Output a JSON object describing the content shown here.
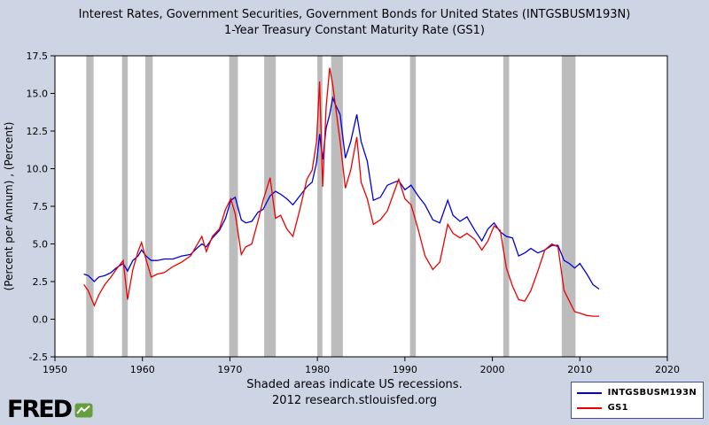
{
  "title": {
    "line1": "Interest Rates, Government Securities, Government Bonds for United States (INTGSBUSM193N)",
    "line2": "1-Year Treasury Constant Maturity Rate (GS1)"
  },
  "footer": {
    "note": "Shaded areas indicate US recessions.",
    "credit": "2012 research.stlouisfed.org"
  },
  "logo": {
    "text": "FRED"
  },
  "legend": [
    {
      "label": "INTGSBUSM193N",
      "color": "#0000dd"
    },
    {
      "label": "GS1",
      "color": "#ee0000"
    }
  ],
  "colors": {
    "background": "#cdd5e4",
    "plot_bg": "#ffffff",
    "recession": "#bcbcbc",
    "frame": "#000000",
    "series1": "#0000dd",
    "series2": "#ee0000"
  },
  "chart_data": {
    "type": "line",
    "title": "Interest Rates, Government Securities, Government Bonds for United States (INTGSBUSM193N); 1-Year Treasury Constant Maturity Rate (GS1)",
    "xlabel": "",
    "ylabel": "(Percent per Annum) , (Percent)",
    "xlim": [
      1950,
      2020
    ],
    "ylim": [
      -2.5,
      17.5
    ],
    "grid": false,
    "legend_position": "bottom-right",
    "x_ticks": [
      "1950",
      "1960",
      "1970",
      "1980",
      "1990",
      "2000",
      "2010",
      "2020"
    ],
    "y_ticks": [
      "-2.5",
      "0.0",
      "2.5",
      "5.0",
      "7.5",
      "10.0",
      "12.5",
      "15.0",
      "17.5"
    ],
    "recessions": [
      [
        1953.58,
        1954.42
      ],
      [
        1957.67,
        1958.33
      ],
      [
        1960.33,
        1961.17
      ],
      [
        1969.92,
        1970.92
      ],
      [
        1973.92,
        1975.25
      ],
      [
        1980.0,
        1980.58
      ],
      [
        1981.58,
        1982.92
      ],
      [
        1990.58,
        1991.25
      ],
      [
        2001.25,
        2001.92
      ],
      [
        2007.92,
        2009.5
      ]
    ],
    "x": [
      1953.3,
      1953.8,
      1954.5,
      1955.0,
      1955.7,
      1956.4,
      1957.0,
      1957.8,
      1958.3,
      1958.9,
      1959.5,
      1959.9,
      1960.4,
      1961.0,
      1961.7,
      1962.5,
      1963.5,
      1964.5,
      1965.5,
      1966.2,
      1966.8,
      1967.3,
      1968.0,
      1968.8,
      1969.5,
      1970.1,
      1970.6,
      1971.3,
      1971.8,
      1972.5,
      1973.2,
      1973.8,
      1974.6,
      1975.2,
      1975.8,
      1976.5,
      1977.2,
      1978.0,
      1978.8,
      1979.4,
      1979.9,
      1980.25,
      1980.6,
      1981.0,
      1981.4,
      1981.75,
      1982.1,
      1982.6,
      1983.2,
      1983.8,
      1984.5,
      1985.0,
      1985.7,
      1986.4,
      1987.2,
      1988.0,
      1988.8,
      1989.3,
      1990.0,
      1990.7,
      1991.5,
      1992.3,
      1993.2,
      1994.0,
      1994.9,
      1995.5,
      1996.3,
      1997.1,
      1998.0,
      1998.8,
      1999.5,
      2000.2,
      2000.9,
      2001.6,
      2002.3,
      2003.0,
      2003.7,
      2004.4,
      2005.2,
      2006.0,
      2006.8,
      2007.5,
      2008.2,
      2008.8,
      2009.4,
      2010.0,
      2010.8,
      2011.5,
      2012.2
    ],
    "series": [
      {
        "name": "INTGSBUSM193N",
        "color": "#0000dd",
        "values": [
          3.0,
          2.9,
          2.5,
          2.8,
          2.9,
          3.1,
          3.4,
          3.7,
          3.2,
          3.9,
          4.2,
          4.6,
          4.2,
          3.9,
          3.9,
          4.0,
          4.0,
          4.2,
          4.3,
          4.7,
          5.0,
          4.8,
          5.4,
          5.9,
          6.7,
          7.9,
          8.1,
          6.6,
          6.4,
          6.5,
          7.1,
          7.3,
          8.2,
          8.5,
          8.3,
          8.0,
          7.6,
          8.2,
          8.8,
          9.1,
          10.4,
          12.3,
          10.6,
          12.7,
          13.6,
          14.7,
          14.2,
          13.6,
          10.7,
          11.8,
          13.6,
          11.8,
          10.5,
          7.9,
          8.1,
          8.9,
          9.1,
          9.2,
          8.6,
          8.9,
          8.2,
          7.6,
          6.6,
          6.4,
          7.9,
          6.9,
          6.5,
          6.8,
          5.9,
          5.2,
          6.0,
          6.4,
          5.8,
          5.5,
          5.4,
          4.2,
          4.4,
          4.7,
          4.4,
          4.6,
          4.9,
          4.9,
          3.9,
          3.7,
          3.4,
          3.7,
          3.0,
          2.3,
          2.0
        ]
      },
      {
        "name": "GS1",
        "color": "#ee0000",
        "values": [
          2.3,
          1.9,
          0.9,
          1.6,
          2.3,
          2.8,
          3.3,
          3.9,
          1.3,
          3.3,
          4.5,
          5.1,
          4.0,
          2.8,
          3.0,
          3.1,
          3.5,
          3.8,
          4.2,
          4.9,
          5.5,
          4.5,
          5.5,
          6.0,
          7.3,
          8.0,
          7.0,
          4.3,
          4.8,
          5.0,
          6.5,
          7.9,
          9.4,
          6.7,
          6.9,
          6.0,
          5.5,
          7.3,
          9.3,
          9.9,
          11.8,
          15.8,
          8.8,
          14.1,
          16.7,
          15.6,
          14.0,
          11.8,
          8.7,
          9.9,
          12.1,
          9.1,
          8.0,
          6.3,
          6.6,
          7.2,
          8.5,
          9.3,
          8.0,
          7.6,
          6.0,
          4.2,
          3.3,
          3.8,
          6.3,
          5.7,
          5.4,
          5.7,
          5.3,
          4.6,
          5.2,
          6.2,
          5.9,
          3.4,
          2.2,
          1.3,
          1.2,
          1.9,
          3.2,
          4.6,
          5.0,
          4.8,
          1.9,
          1.2,
          0.5,
          0.4,
          0.25,
          0.2,
          0.2
        ]
      }
    ]
  }
}
